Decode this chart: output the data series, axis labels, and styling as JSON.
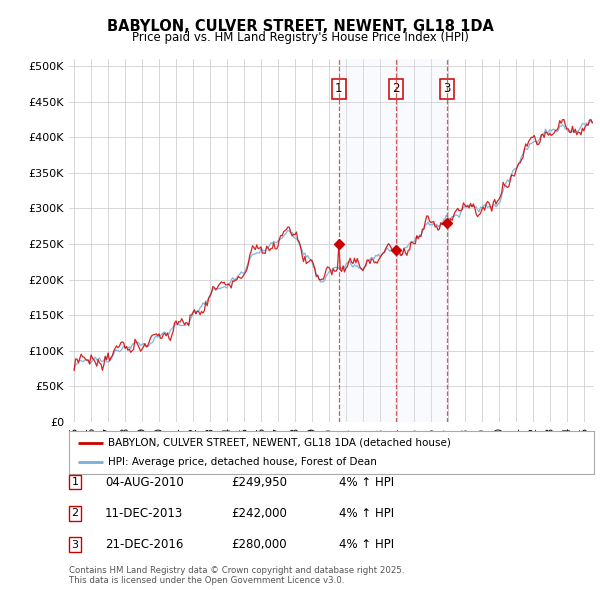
{
  "title": "BABYLON, CULVER STREET, NEWENT, GL18 1DA",
  "subtitle": "Price paid vs. HM Land Registry's House Price Index (HPI)",
  "ylabel_ticks": [
    "£0",
    "£50K",
    "£100K",
    "£150K",
    "£200K",
    "£250K",
    "£300K",
    "£350K",
    "£400K",
    "£450K",
    "£500K"
  ],
  "ytick_values": [
    0,
    50000,
    100000,
    150000,
    200000,
    250000,
    300000,
    350000,
    400000,
    450000,
    500000
  ],
  "ylim": [
    0,
    510000
  ],
  "legend_line1": "BABYLON, CULVER STREET, NEWENT, GL18 1DA (detached house)",
  "legend_line2": "HPI: Average price, detached house, Forest of Dean",
  "transactions": [
    {
      "num": 1,
      "date": "04-AUG-2010",
      "price": "£249,950",
      "pct": "4%",
      "dir": "↑",
      "label": "HPI",
      "x_year": 2010.58
    },
    {
      "num": 2,
      "date": "11-DEC-2013",
      "price": "£242,000",
      "pct": "4%",
      "dir": "↑",
      "label": "HPI",
      "x_year": 2013.94
    },
    {
      "num": 3,
      "date": "21-DEC-2016",
      "price": "£280,000",
      "pct": "4%",
      "dir": "↑",
      "label": "HPI",
      "x_year": 2016.96
    }
  ],
  "footer": "Contains HM Land Registry data © Crown copyright and database right 2025.\nThis data is licensed under the Open Government Licence v3.0.",
  "bg_color": "#ffffff",
  "plot_bg_color": "#ffffff",
  "grid_color": "#c8c8c8",
  "red_line_color": "#cc0000",
  "blue_line_color": "#7bafd4",
  "shade_color": "#dce8f5",
  "vline_color": "#cc3333",
  "annotation_box_color": "#cc0000",
  "xlim_start": 1994.7,
  "xlim_end": 2025.6
}
